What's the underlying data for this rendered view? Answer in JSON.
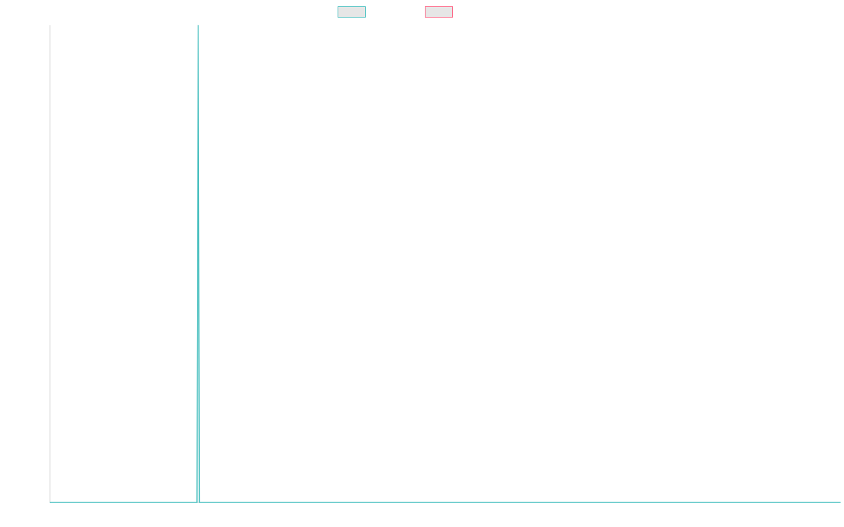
{
  "chart_data": {
    "type": "line",
    "x_range": [
      0,
      100
    ],
    "ylim": [
      0,
      1
    ],
    "grid": false,
    "legend": "top-center",
    "series": [
      {
        "name": "",
        "color": "#4bc0c0",
        "fill": "#e6e6e6",
        "x": [
          0,
          18.6,
          18.75,
          18.9,
          100
        ],
        "values": [
          0,
          0,
          1,
          0,
          0
        ]
      },
      {
        "name": "",
        "color": "#ff6384",
        "fill": "#e6e6e6",
        "x": [],
        "values": []
      }
    ]
  }
}
